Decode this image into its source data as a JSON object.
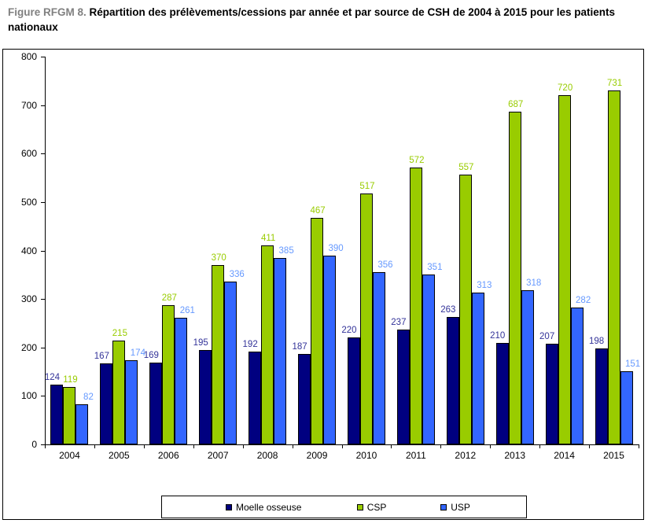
{
  "title": {
    "prefix": "Figure RFGM 8.",
    "text": "Répartition des prélèvements/cessions par année et par source de CSH de 2004 à 2015 pour les patients nationaux"
  },
  "colors": {
    "title_prefix": "#808080",
    "figure_border": "#000000",
    "axis": "#000000"
  },
  "chart_data": {
    "type": "bar",
    "title": "Répartition des prélèvements/cessions par année et par source de CSH de 2004 à 2015 pour les patients nationaux",
    "categories": [
      "2004",
      "2005",
      "2006",
      "2007",
      "2008",
      "2009",
      "2010",
      "2011",
      "2012",
      "2013",
      "2014",
      "2015"
    ],
    "series": [
      {
        "name": "Moelle osseuse",
        "color": "#000080",
        "label_color": "#333399",
        "values": [
          124,
          167,
          169,
          195,
          192,
          187,
          220,
          237,
          263,
          210,
          207,
          198
        ]
      },
      {
        "name": "CSP",
        "color": "#99CC00",
        "label_color": "#99CC00",
        "values": [
          119,
          215,
          287,
          370,
          411,
          467,
          517,
          572,
          557,
          687,
          720,
          731
        ]
      },
      {
        "name": "USP",
        "color": "#3366FF",
        "label_color": "#6699FF",
        "values": [
          82,
          174,
          261,
          336,
          385,
          390,
          356,
          351,
          313,
          318,
          282,
          151
        ]
      }
    ],
    "ylim": [
      0,
      800
    ],
    "y_tick_step": 100,
    "y_tick_labels": [
      "0",
      "100",
      "200",
      "300",
      "400",
      "500",
      "600",
      "700",
      "800"
    ],
    "xlabel": "",
    "ylabel": "",
    "grid": false,
    "data_labels": true,
    "legend_position": "bottom"
  }
}
